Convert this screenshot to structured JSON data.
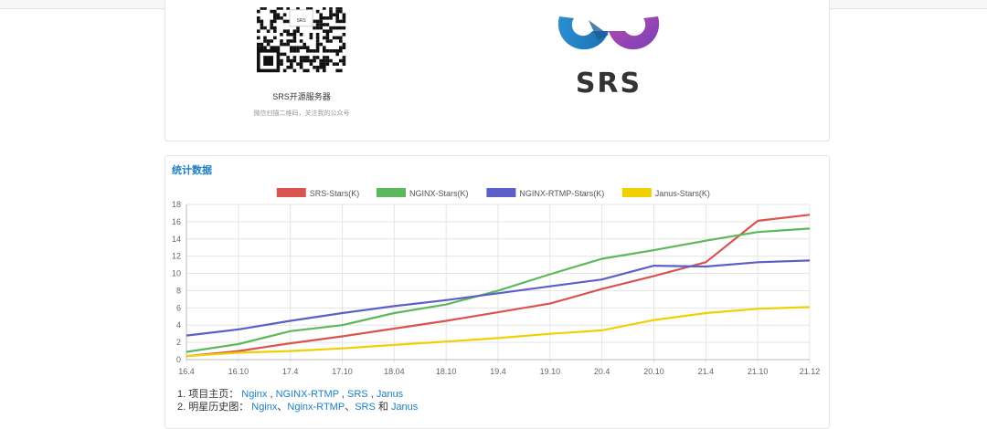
{
  "top_panel": {
    "qr_caption": "SRS开源服务器",
    "qr_subcaption": "微信扫描二维码，关注我的公众号",
    "qr_logo_text": "SRS",
    "logo_text": "SRS"
  },
  "stats": {
    "title": "统计数据"
  },
  "chart_data": {
    "type": "line",
    "x": [
      "16.4",
      "16.10",
      "17.4",
      "17.10",
      "18.04",
      "18.10",
      "19.4",
      "19.10",
      "20.4",
      "20.10",
      "21.4",
      "21.10",
      "21.12"
    ],
    "ylim": [
      0,
      18
    ],
    "yticks": [
      0,
      2,
      4,
      6,
      8,
      10,
      12,
      14,
      16,
      18
    ],
    "grid": true,
    "legend_position": "top",
    "series": [
      {
        "name": "SRS-Stars(K)",
        "color": "#d9534f",
        "values": [
          0.4,
          1.0,
          1.9,
          2.7,
          3.6,
          4.5,
          5.5,
          6.5,
          8.2,
          9.7,
          11.3,
          16.1,
          16.8
        ]
      },
      {
        "name": "NGINX-Stars(K)",
        "color": "#5cb85c",
        "values": [
          0.9,
          1.8,
          3.3,
          4.0,
          5.4,
          6.4,
          8.0,
          9.9,
          11.7,
          12.7,
          13.8,
          14.8,
          15.2
        ]
      },
      {
        "name": "NGINX-RTMP-Stars(K)",
        "color": "#5b5fc7",
        "values": [
          2.8,
          3.5,
          4.5,
          5.4,
          6.2,
          6.9,
          7.7,
          8.5,
          9.3,
          10.9,
          10.8,
          11.3,
          11.5
        ]
      },
      {
        "name": "Janus-Stars(K)",
        "color": "#f0d000",
        "values": [
          0.4,
          0.8,
          1.0,
          1.3,
          1.7,
          2.1,
          2.5,
          3.0,
          3.4,
          4.6,
          5.4,
          5.9,
          6.1
        ]
      }
    ]
  },
  "links": {
    "row1_prefix": "1. 项目主页：",
    "row1_links": [
      "Nginx",
      "NGINX-RTMP",
      "SRS",
      "Janus"
    ],
    "row1_sep": " , ",
    "row2_prefix": "2. 明星历史图：",
    "row2_links": [
      "Nginx",
      "Nginx-RTMP",
      "SRS",
      "Janus"
    ],
    "row2_sep": "、",
    "row2_and": " 和 "
  }
}
